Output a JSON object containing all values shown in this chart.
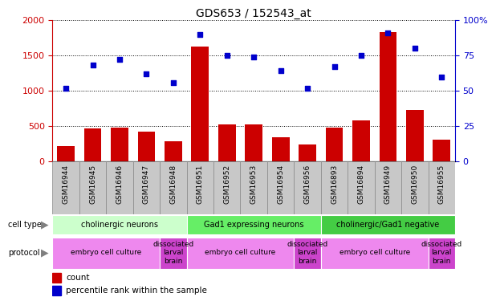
{
  "title": "GDS653 / 152543_at",
  "samples": [
    "GSM16944",
    "GSM16945",
    "GSM16946",
    "GSM16947",
    "GSM16948",
    "GSM16951",
    "GSM16952",
    "GSM16953",
    "GSM16954",
    "GSM16956",
    "GSM16893",
    "GSM16894",
    "GSM16949",
    "GSM16950",
    "GSM16955"
  ],
  "counts": [
    220,
    470,
    480,
    420,
    290,
    1630,
    520,
    530,
    340,
    240,
    480,
    580,
    1830,
    730,
    310
  ],
  "percentile": [
    52,
    68,
    72,
    62,
    56,
    90,
    75,
    74,
    64,
    52,
    67,
    75,
    91,
    80,
    60
  ],
  "ylim_left": [
    0,
    2000
  ],
  "ylim_right": [
    0,
    100
  ],
  "yticks_left": [
    0,
    500,
    1000,
    1500,
    2000
  ],
  "yticks_right": [
    0,
    25,
    50,
    75,
    100
  ],
  "ytick_right_labels": [
    "0",
    "25",
    "50",
    "75",
    "100%"
  ],
  "bar_color": "#cc0000",
  "scatter_color": "#0000cc",
  "cell_type_groups": [
    {
      "label": "cholinergic neurons",
      "start": 0,
      "end": 5,
      "color": "#ccffcc"
    },
    {
      "label": "Gad1 expressing neurons",
      "start": 5,
      "end": 10,
      "color": "#66ee66"
    },
    {
      "label": "cholinergic/Gad1 negative",
      "start": 10,
      "end": 15,
      "color": "#44cc44"
    }
  ],
  "protocol_groups": [
    {
      "label": "embryo cell culture",
      "start": 0,
      "end": 4,
      "color": "#ee88ee"
    },
    {
      "label": "dissociated\nlarval\nbrain",
      "start": 4,
      "end": 5,
      "color": "#cc44cc"
    },
    {
      "label": "embryo cell culture",
      "start": 5,
      "end": 9,
      "color": "#ee88ee"
    },
    {
      "label": "dissociated\nlarval\nbrain",
      "start": 9,
      "end": 10,
      "color": "#cc44cc"
    },
    {
      "label": "embryo cell culture",
      "start": 10,
      "end": 14,
      "color": "#ee88ee"
    },
    {
      "label": "dissociated\nlarval\nbrain",
      "start": 14,
      "end": 15,
      "color": "#cc44cc"
    }
  ],
  "xtick_bg_color": "#c8c8c8",
  "xtick_edge_color": "#888888",
  "fig_bg": "#ffffff"
}
